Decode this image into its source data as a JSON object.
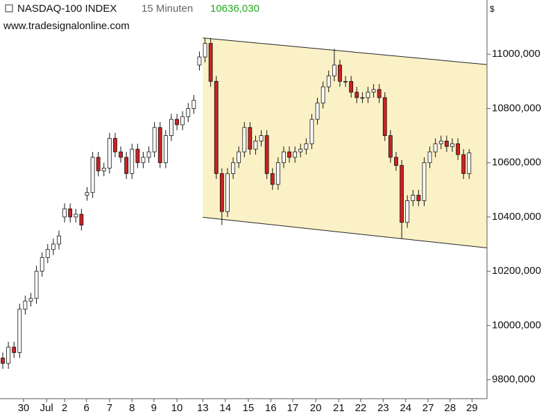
{
  "chart_data": {
    "type": "candlestick",
    "title": "NASDAQ-100 INDEX",
    "interval": "15 Minuten",
    "last_price": "10636,030",
    "last_price_color": "#22aa22",
    "source": "www.tradesignalonline.com",
    "currency": "$",
    "up_color": "#ffffff",
    "down_color": "#cc2222",
    "xlim": [
      -0.49,
      86.18
    ],
    "ylim": [
      9730,
      11200
    ],
    "yticks": [
      {
        "value": 9800,
        "label": "9800,000"
      },
      {
        "value": 10000,
        "label": "10000,000"
      },
      {
        "value": 10200,
        "label": "10200,000"
      },
      {
        "value": 10400,
        "label": "10400,000"
      },
      {
        "value": 10600,
        "label": "10600,000"
      },
      {
        "value": 10800,
        "label": "10800,000"
      },
      {
        "value": 11000,
        "label": "11000,000"
      }
    ],
    "xticks": [
      {
        "value": 3.7,
        "label": "30"
      },
      {
        "value": 7.8,
        "label": "Jul"
      },
      {
        "value": 11.0,
        "label": "2"
      },
      {
        "value": 14.9,
        "label": "6"
      },
      {
        "value": 19.0,
        "label": "7"
      },
      {
        "value": 23.0,
        "label": "8"
      },
      {
        "value": 26.9,
        "label": "9"
      },
      {
        "value": 31.0,
        "label": "10"
      },
      {
        "value": 35.6,
        "label": "13"
      },
      {
        "value": 39.6,
        "label": "14"
      },
      {
        "value": 43.7,
        "label": "15"
      },
      {
        "value": 47.7,
        "label": "16"
      },
      {
        "value": 51.6,
        "label": "17"
      },
      {
        "value": 55.7,
        "label": "20"
      },
      {
        "value": 59.8,
        "label": "21"
      },
      {
        "value": 63.7,
        "label": "22"
      },
      {
        "value": 67.7,
        "label": "23"
      },
      {
        "value": 71.7,
        "label": "24"
      },
      {
        "value": 75.7,
        "label": "27"
      },
      {
        "value": 79.6,
        "label": "28"
      },
      {
        "value": 83.5,
        "label": "29"
      }
    ],
    "channel": {
      "x": [
        35.6,
        86.18
      ],
      "upper": [
        11060,
        10962
      ],
      "lower": [
        10399,
        10286
      ],
      "color": "#fbf1c7"
    },
    "open": [
      9880,
      9860,
      9920,
      9900,
      10060,
      10090,
      10100,
      10200,
      10250,
      10280,
      10300,
      10400,
      10430,
      10400,
      10410,
      10480,
      10490,
      10620,
      10570,
      10580,
      10690,
      10640,
      10620,
      10560,
      10650,
      10600,
      10620,
      10640,
      10730,
      10600,
      10700,
      10760,
      10740,
      10770,
      10800,
      10960,
      10990,
      11040,
      10900,
      10560,
      10420,
      10560,
      10600,
      10640,
      10730,
      10650,
      10680,
      10700,
      10560,
      10520,
      10600,
      10640,
      10620,
      10640,
      10650,
      10670,
      10760,
      10820,
      10880,
      10920,
      10960,
      10900,
      10900,
      10860,
      10840,
      10840,
      10860,
      10870,
      10840,
      10700,
      10620,
      10590,
      10380,
      10460,
      10480,
      10460,
      10600,
      10640,
      10670,
      10680,
      10660,
      10670,
      10630,
      10560
    ],
    "high": [
      9900,
      9940,
      9940,
      10080,
      10110,
      10120,
      10220,
      10270,
      10300,
      10320,
      10350,
      10450,
      10450,
      10430,
      10430,
      10510,
      10640,
      10640,
      10600,
      10710,
      10710,
      10660,
      10640,
      10670,
      10670,
      10640,
      10660,
      10750,
      10750,
      10720,
      10780,
      10780,
      10790,
      10820,
      10850,
      11010,
      11060,
      11060,
      10920,
      10580,
      10580,
      10620,
      10660,
      10750,
      10750,
      10700,
      10720,
      10720,
      10580,
      10620,
      10660,
      10660,
      10660,
      10670,
      10690,
      10780,
      10840,
      10900,
      10940,
      11020,
      10980,
      10920,
      10920,
      10880,
      10860,
      10880,
      10890,
      10890,
      10860,
      10720,
      10640,
      10610,
      10480,
      10500,
      10500,
      10620,
      10660,
      10690,
      10700,
      10700,
      10690,
      10690,
      10650,
      10650
    ],
    "low": [
      9840,
      9840,
      9880,
      9880,
      10040,
      10070,
      10080,
      10180,
      10230,
      10260,
      10280,
      10380,
      10380,
      10380,
      10350,
      10460,
      10470,
      10550,
      10550,
      10560,
      10620,
      10600,
      10540,
      10540,
      10580,
      10580,
      10600,
      10620,
      10580,
      10580,
      10680,
      10720,
      10720,
      10750,
      10780,
      10940,
      10970,
      10880,
      10540,
      10370,
      10400,
      10540,
      10580,
      10620,
      10630,
      10630,
      10660,
      10540,
      10500,
      10500,
      10580,
      10600,
      10600,
      10620,
      10630,
      10650,
      10740,
      10800,
      10860,
      10900,
      10880,
      10880,
      10840,
      10820,
      10820,
      10820,
      10840,
      10820,
      10680,
      10600,
      10570,
      10320,
      10360,
      10440,
      10440,
      10440,
      10580,
      10620,
      10650,
      10640,
      10640,
      10610,
      10540,
      10540
    ],
    "close": [
      9860,
      9920,
      9900,
      10060,
      10090,
      10100,
      10200,
      10250,
      10280,
      10300,
      10330,
      10430,
      10400,
      10410,
      10370,
      10490,
      10620,
      10570,
      10580,
      10690,
      10640,
      10620,
      10560,
      10650,
      10600,
      10620,
      10640,
      10730,
      10600,
      10700,
      10760,
      10740,
      10770,
      10800,
      10830,
      10990,
      11040,
      10900,
      10560,
      10420,
      10560,
      10600,
      10640,
      10730,
      10650,
      10680,
      10700,
      10560,
      10520,
      10600,
      10640,
      10620,
      10640,
      10650,
      10670,
      10760,
      10820,
      10880,
      10920,
      10960,
      10900,
      10900,
      10860,
      10840,
      10840,
      10860,
      10870,
      10840,
      10700,
      10620,
      10590,
      10380,
      10460,
      10480,
      10460,
      10600,
      10640,
      10670,
      10680,
      10660,
      10670,
      10630,
      10560,
      10636.03
    ]
  }
}
